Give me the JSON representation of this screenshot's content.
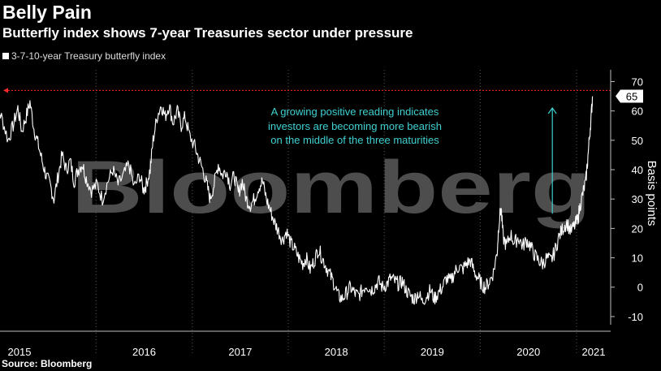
{
  "header": {
    "title": "Belly Pain",
    "subtitle": "Butterfly index shows 7-year Treasuries sector under pressure"
  },
  "source": "Source: Bloomberg",
  "watermark": "Bloomberg",
  "chart_data": {
    "type": "line",
    "title": "Belly Pain",
    "subtitle": "Butterfly index shows 7-year Treasuries sector under pressure",
    "ylabel": "Basis points",
    "xlabel": "",
    "ylim": [
      -15,
      74
    ],
    "yticks": [
      -10,
      0,
      10,
      20,
      30,
      40,
      50,
      60,
      70
    ],
    "year_labels": [
      "2015",
      "2016",
      "2017",
      "2018",
      "2019",
      "2020",
      "2021"
    ],
    "legend": {
      "position": "top-left",
      "entries": [
        "3-7-10-year Treasury butterfly index"
      ]
    },
    "grid": false,
    "series": [
      {
        "name": "3-7-10-year Treasury butterfly index",
        "color": "#ffffff",
        "points": [
          [
            "2014-12-01",
            68
          ],
          [
            "2014-12-20",
            62
          ],
          [
            "2015-01-10",
            57
          ],
          [
            "2015-02-01",
            50
          ],
          [
            "2015-02-20",
            55
          ],
          [
            "2015-03-10",
            61
          ],
          [
            "2015-03-25",
            53
          ],
          [
            "2015-04-10",
            58
          ],
          [
            "2015-04-25",
            63
          ],
          [
            "2015-05-10",
            54
          ],
          [
            "2015-05-25",
            49
          ],
          [
            "2015-06-10",
            43
          ],
          [
            "2015-06-25",
            38
          ],
          [
            "2015-07-10",
            35
          ],
          [
            "2015-07-25",
            30
          ],
          [
            "2015-08-10",
            38
          ],
          [
            "2015-08-25",
            45
          ],
          [
            "2015-09-10",
            40
          ],
          [
            "2015-09-25",
            43
          ],
          [
            "2015-10-10",
            36
          ],
          [
            "2015-10-25",
            40
          ],
          [
            "2015-11-10",
            42
          ],
          [
            "2015-11-25",
            37
          ],
          [
            "2015-12-15",
            33
          ],
          [
            "2016-01-05",
            35
          ],
          [
            "2016-01-25",
            30
          ],
          [
            "2016-02-15",
            36
          ],
          [
            "2016-03-05",
            40
          ],
          [
            "2016-03-25",
            35
          ],
          [
            "2016-04-15",
            38
          ],
          [
            "2016-05-05",
            42
          ],
          [
            "2016-05-25",
            34
          ],
          [
            "2016-06-15",
            38
          ],
          [
            "2016-06-30",
            33
          ],
          [
            "2016-07-10",
            35
          ],
          [
            "2016-07-25",
            40
          ],
          [
            "2016-08-05",
            50
          ],
          [
            "2016-08-20",
            58
          ],
          [
            "2016-09-05",
            62
          ],
          [
            "2016-09-20",
            58
          ],
          [
            "2016-10-05",
            62
          ],
          [
            "2016-10-20",
            56
          ],
          [
            "2016-11-05",
            60
          ],
          [
            "2016-11-20",
            55
          ],
          [
            "2016-12-05",
            58
          ],
          [
            "2016-12-20",
            52
          ],
          [
            "2017-01-10",
            48
          ],
          [
            "2017-01-25",
            44
          ],
          [
            "2017-02-10",
            40
          ],
          [
            "2017-02-25",
            35
          ],
          [
            "2017-03-10",
            30
          ],
          [
            "2017-03-25",
            35
          ],
          [
            "2017-04-10",
            42
          ],
          [
            "2017-04-25",
            38
          ],
          [
            "2017-05-10",
            40
          ],
          [
            "2017-05-25",
            35
          ],
          [
            "2017-06-10",
            38
          ],
          [
            "2017-06-25",
            32
          ],
          [
            "2017-07-10",
            36
          ],
          [
            "2017-07-25",
            30
          ],
          [
            "2017-08-10",
            28
          ],
          [
            "2017-08-25",
            30
          ],
          [
            "2017-09-10",
            34
          ],
          [
            "2017-09-25",
            36
          ],
          [
            "2017-10-10",
            30
          ],
          [
            "2017-10-25",
            26
          ],
          [
            "2017-11-10",
            22
          ],
          [
            "2017-11-25",
            19
          ],
          [
            "2017-12-10",
            16
          ],
          [
            "2017-12-25",
            19
          ],
          [
            "2018-01-10",
            15
          ],
          [
            "2018-01-25",
            13
          ],
          [
            "2018-02-10",
            10
          ],
          [
            "2018-02-25",
            8
          ],
          [
            "2018-03-10",
            10
          ],
          [
            "2018-03-25",
            6
          ],
          [
            "2018-04-10",
            9
          ],
          [
            "2018-04-25",
            13
          ],
          [
            "2018-05-10",
            10
          ],
          [
            "2018-05-25",
            7
          ],
          [
            "2018-06-10",
            4
          ],
          [
            "2018-06-25",
            1
          ],
          [
            "2018-07-10",
            -3
          ],
          [
            "2018-07-25",
            -4
          ],
          [
            "2018-08-10",
            -2
          ],
          [
            "2018-08-25",
            0
          ],
          [
            "2018-09-10",
            -2
          ],
          [
            "2018-09-25",
            -3
          ],
          [
            "2018-10-10",
            -1
          ],
          [
            "2018-10-25",
            1
          ],
          [
            "2018-11-10",
            -1
          ],
          [
            "2018-11-25",
            0
          ],
          [
            "2018-12-10",
            2
          ],
          [
            "2018-12-25",
            0
          ],
          [
            "2019-01-10",
            1
          ],
          [
            "2019-01-25",
            3
          ],
          [
            "2019-02-10",
            2
          ],
          [
            "2019-02-25",
            1
          ],
          [
            "2019-03-10",
            2
          ],
          [
            "2019-03-25",
            -1
          ],
          [
            "2019-04-10",
            -3
          ],
          [
            "2019-04-25",
            -4
          ],
          [
            "2019-05-10",
            -2
          ],
          [
            "2019-05-25",
            -5
          ],
          [
            "2019-06-10",
            -3
          ],
          [
            "2019-06-25",
            -1
          ],
          [
            "2019-07-10",
            -4
          ],
          [
            "2019-07-25",
            -2
          ],
          [
            "2019-08-10",
            0
          ],
          [
            "2019-08-25",
            3
          ],
          [
            "2019-09-10",
            2
          ],
          [
            "2019-09-25",
            5
          ],
          [
            "2019-10-10",
            7
          ],
          [
            "2019-10-25",
            6
          ],
          [
            "2019-11-10",
            8
          ],
          [
            "2019-11-25",
            9
          ],
          [
            "2019-12-10",
            5
          ],
          [
            "2019-12-25",
            3
          ],
          [
            "2020-01-05",
            1
          ],
          [
            "2020-01-20",
            0
          ],
          [
            "2020-02-05",
            2
          ],
          [
            "2020-02-20",
            5
          ],
          [
            "2020-03-05",
            12
          ],
          [
            "2020-03-12",
            22
          ],
          [
            "2020-03-20",
            27
          ],
          [
            "2020-03-28",
            17
          ],
          [
            "2020-04-10",
            14
          ],
          [
            "2020-04-25",
            18
          ],
          [
            "2020-05-10",
            15
          ],
          [
            "2020-05-25",
            17
          ],
          [
            "2020-06-10",
            14
          ],
          [
            "2020-06-25",
            16
          ],
          [
            "2020-07-10",
            14
          ],
          [
            "2020-07-25",
            11
          ],
          [
            "2020-08-10",
            9
          ],
          [
            "2020-08-25",
            8
          ],
          [
            "2020-09-10",
            10
          ],
          [
            "2020-09-25",
            9
          ],
          [
            "2020-10-10",
            12
          ],
          [
            "2020-10-25",
            17
          ],
          [
            "2020-11-10",
            20
          ],
          [
            "2020-11-25",
            22
          ],
          [
            "2020-12-10",
            19
          ],
          [
            "2020-12-25",
            21
          ],
          [
            "2021-01-05",
            23
          ],
          [
            "2021-01-15",
            28
          ],
          [
            "2021-01-25",
            32
          ],
          [
            "2021-02-05",
            36
          ],
          [
            "2021-02-12",
            43
          ],
          [
            "2021-02-20",
            52
          ],
          [
            "2021-02-27",
            60
          ],
          [
            "2021-03-03",
            65
          ]
        ]
      }
    ],
    "reference_line": {
      "value": 67,
      "color": "#ff2a2a",
      "style": "dotted"
    },
    "last_value_label": "65",
    "annotation": {
      "text_lines": [
        "A growing positive reading indicates",
        "investors are becoming more bearish",
        "on the middle of the three maturities"
      ],
      "color": "#3fd1d1",
      "arrow_at": "2020-10-01",
      "arrow_from_value": 25,
      "arrow_to_value": 61
    }
  }
}
